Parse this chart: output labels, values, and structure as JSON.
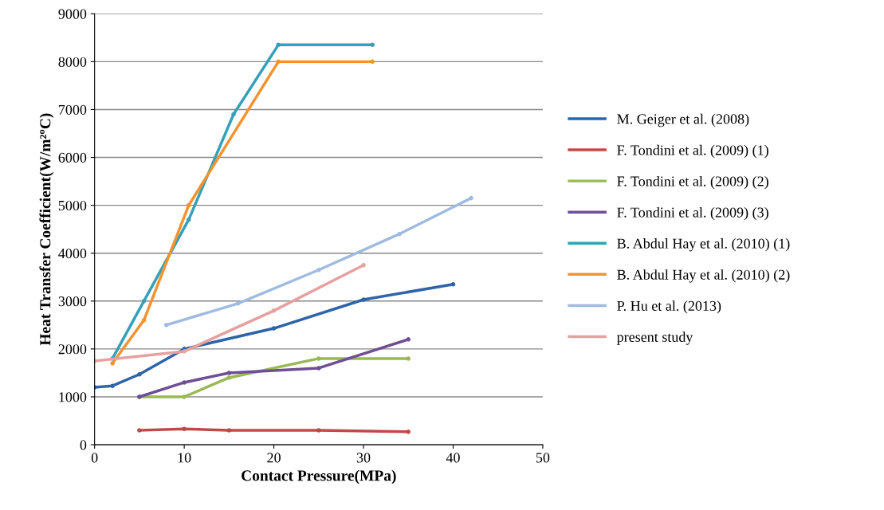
{
  "chart_data": {
    "type": "line",
    "xlabel": "Contact Pressure(MPa)",
    "ylabel": "Heat Transfer Coefficient(W/m²ºC)",
    "xlim": [
      0,
      50
    ],
    "xticks": [
      0,
      10,
      20,
      30,
      40,
      50
    ],
    "ylim": [
      0,
      9000
    ],
    "yticks": [
      0,
      1000,
      2000,
      3000,
      4000,
      5000,
      6000,
      7000,
      8000,
      9000
    ],
    "grid": "y",
    "legend": "right",
    "marker": "circle",
    "line_style": "solid",
    "series": [
      {
        "name": "M. Geiger et al. (2008)",
        "color": "#2f64a8",
        "x": [
          0,
          2,
          5,
          10,
          20,
          30,
          40
        ],
        "values": [
          1200,
          1230,
          1470,
          2000,
          2430,
          3030,
          3350
        ]
      },
      {
        "name": "F. Tondini et al. (2009) (1)",
        "color": "#be4b48",
        "x": [
          5,
          10,
          15,
          25,
          35
        ],
        "values": [
          300,
          330,
          300,
          300,
          270
        ]
      },
      {
        "name": "F. Tondini et al. (2009) (2)",
        "color": "#98b954",
        "x": [
          5,
          10,
          15,
          25,
          35
        ],
        "values": [
          1000,
          1000,
          1400,
          1800,
          1800
        ]
      },
      {
        "name": "F. Tondini et al. (2009) (3)",
        "color": "#6e4f94",
        "x": [
          5,
          10,
          15,
          25,
          35
        ],
        "values": [
          1000,
          1300,
          1500,
          1600,
          2200
        ]
      },
      {
        "name": "B. Abdul Hay et al. (2010) (1)",
        "color": "#35a0b8",
        "x": [
          2,
          5.5,
          10.5,
          15.5,
          20.5,
          31
        ],
        "values": [
          1800,
          3000,
          4700,
          6900,
          8350,
          8350
        ]
      },
      {
        "name": "B. Abdul Hay et al. (2010) (2)",
        "color": "#f7922e",
        "x": [
          2,
          5.5,
          10.5,
          20.5,
          31
        ],
        "values": [
          1700,
          2600,
          5000,
          8000,
          8000
        ]
      },
      {
        "name": "P. Hu et al. (2013)",
        "color": "#9fbbe0",
        "x": [
          8,
          16,
          25,
          34,
          42
        ],
        "values": [
          2500,
          2950,
          3650,
          4400,
          5150
        ]
      },
      {
        "name": "present study",
        "color": "#e6a0a0",
        "x": [
          0,
          10,
          20,
          30
        ],
        "values": [
          1750,
          1950,
          2800,
          3750
        ]
      }
    ]
  }
}
